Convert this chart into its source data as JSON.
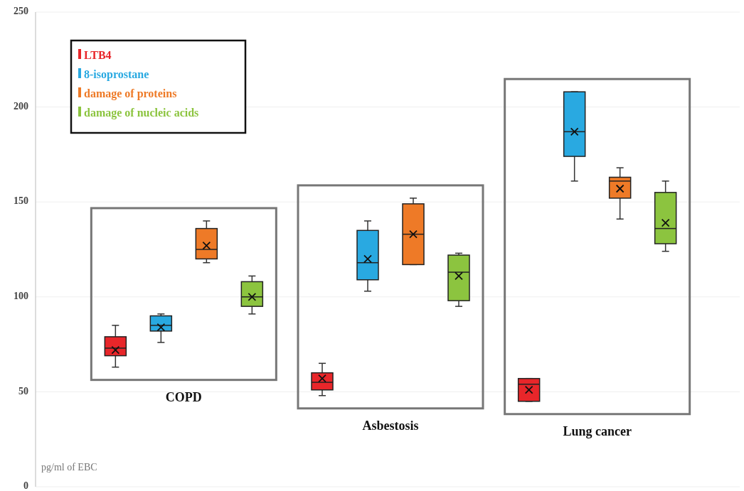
{
  "chart_data": {
    "type": "box",
    "categories": [
      "COPD",
      "Asbestosis",
      "Lung cancer"
    ],
    "ylabel": "pg/ml of EBC",
    "ylim": [
      0,
      250
    ],
    "yticks": [
      0,
      50,
      100,
      150,
      200,
      250
    ],
    "grid": "y",
    "legend": "top left",
    "series": [
      {
        "name": "LTB4",
        "color": "#e8262a",
        "boxes": [
          {
            "low": 63,
            "q1": 69,
            "median": 73,
            "q3": 79,
            "high": 85,
            "mean": 72
          },
          {
            "low": 48,
            "q1": 51,
            "median": 55,
            "q3": 60,
            "high": 65,
            "mean": 57
          },
          {
            "low": 45,
            "q1": 45,
            "median": 54,
            "q3": 57,
            "high": 57,
            "mean": 51
          }
        ]
      },
      {
        "name": "8-isoprostane",
        "color": "#29a9e1",
        "boxes": [
          {
            "low": 76,
            "q1": 82,
            "median": 85,
            "q3": 90,
            "high": 91,
            "mean": 84
          },
          {
            "low": 103,
            "q1": 109,
            "median": 118,
            "q3": 135,
            "high": 140,
            "mean": 120
          },
          {
            "low": 161,
            "q1": 174,
            "median": 187,
            "q3": 208,
            "high": 208,
            "mean": 187
          }
        ]
      },
      {
        "name": "damage of proteins",
        "color": "#ee7a27",
        "boxes": [
          {
            "low": 118,
            "q1": 120,
            "median": 125,
            "q3": 136,
            "high": 140,
            "mean": 127
          },
          {
            "low": 117,
            "q1": 117,
            "median": 133,
            "q3": 149,
            "high": 152,
            "mean": 133
          },
          {
            "low": 141,
            "q1": 152,
            "median": 161,
            "q3": 163,
            "high": 168,
            "mean": 157
          }
        ]
      },
      {
        "name": "damage of nucleic acids",
        "color": "#8cc43f",
        "boxes": [
          {
            "low": 91,
            "q1": 95,
            "median": 100,
            "q3": 108,
            "high": 111,
            "mean": 100
          },
          {
            "low": 95,
            "q1": 98,
            "median": 113,
            "q3": 122,
            "high": 123,
            "mean": 111
          },
          {
            "low": 124,
            "q1": 128,
            "median": 136,
            "q3": 155,
            "high": 161,
            "mean": 139
          }
        ]
      }
    ]
  }
}
